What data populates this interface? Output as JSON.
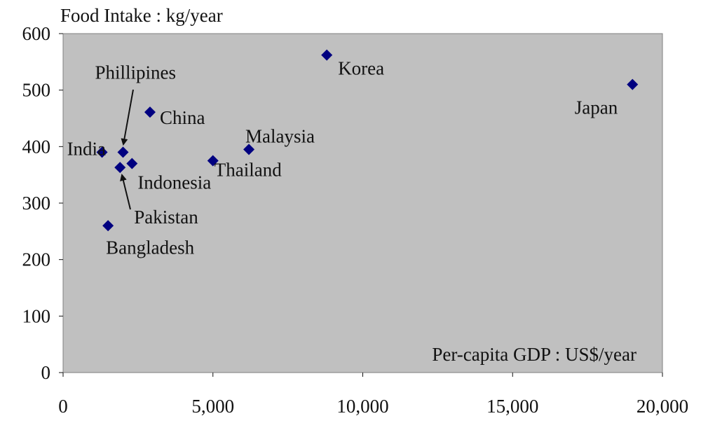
{
  "chart_data": {
    "type": "scatter",
    "ylabel": "Food Intake : kg/year",
    "xlabel": "Per-capita GDP : US$/year",
    "xlim": [
      0,
      20000
    ],
    "ylim": [
      0,
      600
    ],
    "x_ticks": [
      0,
      5000,
      10000,
      15000,
      20000
    ],
    "x_tick_labels": [
      "0",
      "5,000",
      "10,000",
      "15,000",
      "20,000"
    ],
    "y_ticks": [
      0,
      100,
      200,
      300,
      400,
      500,
      600
    ],
    "y_tick_labels": [
      "0",
      "100",
      "200",
      "300",
      "400",
      "500",
      "600"
    ],
    "grid": false,
    "legend": "none",
    "colors": {
      "plot_background": "#c0c0c0",
      "marker": "#000080",
      "text": "#111111"
    },
    "points": [
      {
        "label": "India",
        "x": 1300,
        "y": 390
      },
      {
        "label": "Phillipines",
        "x": 2000,
        "y": 390
      },
      {
        "label": "Pakistan",
        "x": 1900,
        "y": 363
      },
      {
        "label": "Indonesia",
        "x": 2300,
        "y": 370
      },
      {
        "label": "Bangladesh",
        "x": 1500,
        "y": 260
      },
      {
        "label": "China",
        "x": 2900,
        "y": 461
      },
      {
        "label": "Thailand",
        "x": 5000,
        "y": 375
      },
      {
        "label": "Malaysia",
        "x": 6200,
        "y": 395
      },
      {
        "label": "Korea",
        "x": 8800,
        "y": 562
      },
      {
        "label": "Japan",
        "x": 19000,
        "y": 510
      }
    ]
  }
}
